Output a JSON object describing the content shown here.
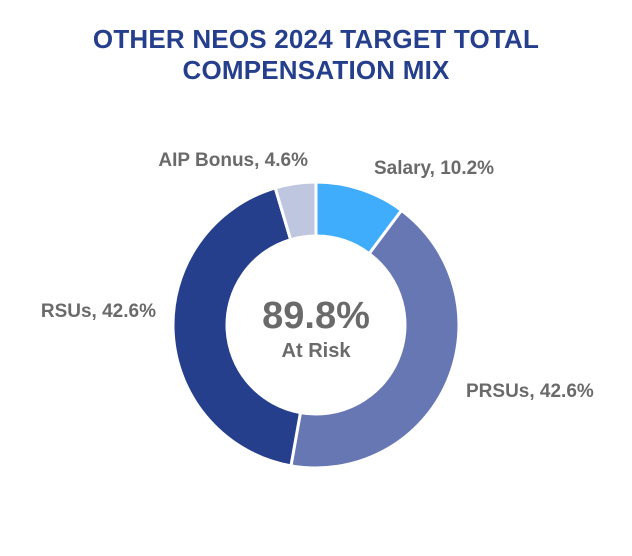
{
  "chart_data": {
    "type": "pie",
    "variant": "donut",
    "title": "OTHER NEOS 2024 TARGET TOTAL COMPENSATION MIX",
    "title_lines": [
      "OTHER NEOS 2024 TARGET TOTAL",
      "COMPENSATION MIX"
    ],
    "center_value": "89.8%",
    "center_label": "At Risk",
    "slices": [
      {
        "name": "Salary",
        "value": 10.2,
        "label": "Salary, 10.2%",
        "color": "#3fadfc"
      },
      {
        "name": "PRSUs",
        "value": 42.6,
        "label": "PRSUs, 42.6%",
        "color": "#6777b3"
      },
      {
        "name": "RSUs",
        "value": 42.6,
        "label": "RSUs, 42.6%",
        "color": "#253f8c"
      },
      {
        "name": "AIP Bonus",
        "value": 4.6,
        "label": "AIP Bonus, 4.6%",
        "color": "#bec6e0"
      }
    ],
    "legend": "none"
  },
  "colors": {
    "title": "#253f8c",
    "label_text": "#6a6a6a",
    "background": "#ffffff"
  }
}
